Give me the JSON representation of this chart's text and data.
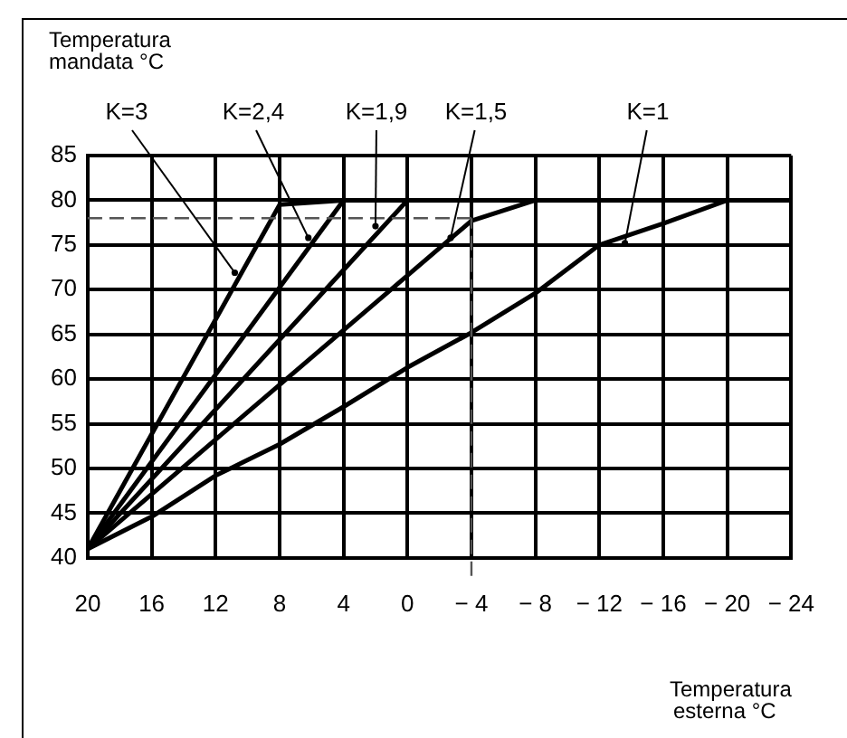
{
  "chart_data": {
    "type": "line",
    "xlabel": "Temperatura esterna °C",
    "ylabel": "Temperatura mandata °C",
    "xlim": [
      20,
      -24
    ],
    "xticks": [
      20,
      16,
      12,
      8,
      4,
      0,
      -4,
      -8,
      -12,
      -16,
      -20,
      -24
    ],
    "ylim": [
      40,
      85
    ],
    "yticks": [
      40,
      45,
      50,
      55,
      60,
      65,
      70,
      75,
      80,
      85
    ],
    "grid": true,
    "legend": false,
    "marker": "none",
    "line_style": "solid",
    "series": [
      {
        "color": "#000000",
        "x": [
          20,
          8,
          4,
          -24
        ],
        "values": [
          41,
          79.5,
          80,
          80
        ]
      },
      {
        "color": "#000000",
        "x": [
          20,
          4,
          -24
        ],
        "values": [
          41,
          80,
          80
        ]
      },
      {
        "color": "#000000",
        "x": [
          20,
          0,
          -24
        ],
        "values": [
          41,
          80,
          80
        ]
      },
      {
        "color": "#000000",
        "x": [
          20,
          -4,
          -8,
          -24
        ],
        "values": [
          41,
          77.7,
          80,
          80
        ]
      },
      {
        "color": "#000000",
        "x": [
          20,
          16,
          12,
          8,
          4,
          0,
          -4,
          -8,
          -12,
          -16,
          -20,
          -24
        ],
        "values": [
          41,
          44.6,
          49.2,
          52.7,
          56.9,
          61.3,
          65.2,
          69.6,
          75,
          77.4,
          80,
          80
        ]
      }
    ],
    "ref_lines": [
      {
        "axis": "y",
        "value": 78,
        "color": "#555555",
        "line_style": "dashed"
      },
      {
        "axis": "x",
        "value": -4,
        "color": "#555555",
        "line_style": "dashed"
      }
    ],
    "annotations": [
      {
        "text": "K=3",
        "x": 10.8,
        "y": 71.9
      },
      {
        "text": "K=2,4",
        "x": 6.2,
        "y": 75.8
      },
      {
        "text": "K=1,9",
        "x": 2,
        "y": 77.1
      },
      {
        "text": "K=1,5",
        "x": -2.7,
        "y": 75.8
      },
      {
        "text": "K=1",
        "x": -13.6,
        "y": 75.2
      }
    ]
  }
}
